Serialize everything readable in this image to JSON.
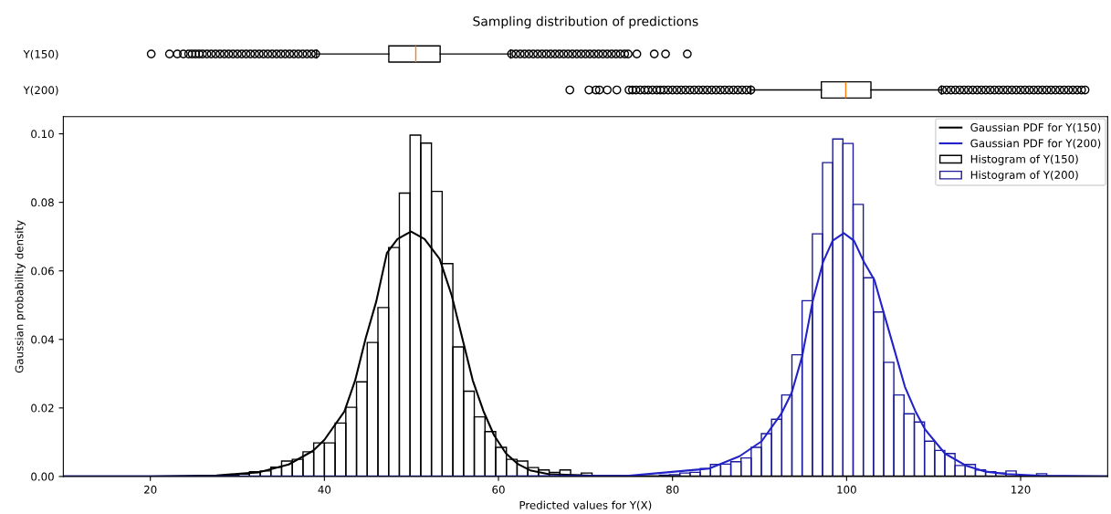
{
  "chart_data": [
    {
      "type": "box",
      "title": "Sampling distribution of predictions",
      "orientation": "horizontal",
      "categories": [
        "Y(150)",
        "Y(200)"
      ],
      "xlim": [
        10,
        130
      ],
      "tick_labels": "y",
      "boxes": [
        {
          "low": 39.1,
          "q1": 47.4,
          "median": 50.5,
          "q3": 53.3,
          "high": 61.4,
          "outliers": [
            20.1,
            22.2,
            23.1,
            23.8,
            24.4,
            24.8,
            25.2,
            25.6,
            26.0,
            26.5,
            27.0,
            27.5,
            28.0,
            28.5,
            29.0,
            29.5,
            30.0,
            30.5,
            31.0,
            31.5,
            32.0,
            32.5,
            33.0,
            33.5,
            34.0,
            34.5,
            35.0,
            35.5,
            36.0,
            36.5,
            37.0,
            37.5,
            38.0,
            38.5,
            39.0,
            61.5,
            62.0,
            62.5,
            63.0,
            63.5,
            64.0,
            64.5,
            65.0,
            65.5,
            66.0,
            66.5,
            67.0,
            67.5,
            68.0,
            68.5,
            69.0,
            69.5,
            70.0,
            70.5,
            71.0,
            71.5,
            72.0,
            72.5,
            73.0,
            73.5,
            74.0,
            74.5,
            74.9,
            75.9,
            77.9,
            79.2,
            81.7
          ]
        },
        {
          "low": 89.0,
          "q1": 97.1,
          "median": 99.9,
          "q3": 102.8,
          "high": 110.9,
          "outliers": [
            68.2,
            70.4,
            71.2,
            71.6,
            72.5,
            73.6,
            75.0,
            75.4,
            75.8,
            76.3,
            76.8,
            77.2,
            77.7,
            78.2,
            78.6,
            79.0,
            79.5,
            80.0,
            80.5,
            81.0,
            81.5,
            82.0,
            82.5,
            83.0,
            83.5,
            84.0,
            84.5,
            85.0,
            85.5,
            86.0,
            86.5,
            87.0,
            87.5,
            88.0,
            88.5,
            89.0,
            111.0,
            111.5,
            112.0,
            112.5,
            113.0,
            113.5,
            114.0,
            114.5,
            115.0,
            115.5,
            116.0,
            116.5,
            117.0,
            117.5,
            118.0,
            118.5,
            119.0,
            119.5,
            120.0,
            120.5,
            121.0,
            121.5,
            122.0,
            122.5,
            123.0,
            123.5,
            124.0,
            124.5,
            125.0,
            125.5,
            126.0,
            126.5,
            127.0,
            127.4
          ]
        }
      ]
    },
    {
      "type": "histogram",
      "xlabel": "Predicted values for Y(X)",
      "ylabel": "Gaussian probability density",
      "xlim": [
        10,
        130
      ],
      "xticks": [
        20,
        40,
        60,
        80,
        100,
        120
      ],
      "ylim": [
        0,
        0.105
      ],
      "yticks": [
        {
          "value": 0,
          "label": "0.00"
        },
        {
          "value": 0.02,
          "label": "0.02"
        },
        {
          "value": 0.04,
          "label": "0.04"
        },
        {
          "value": 0.06,
          "label": "0.06"
        },
        {
          "value": 0.08,
          "label": "0.08"
        },
        {
          "value": 0.1,
          "label": "0.10"
        }
      ],
      "legend": "top right",
      "grid": false,
      "series": [
        {
          "name": "Gaussian PDF for Y(150)",
          "type": "line",
          "color": "#000000",
          "x": [
            10,
            20,
            27.6,
            32.4,
            35.9,
            38.7,
            40.0,
            42.3,
            43.54,
            44.75,
            45.96,
            47.18,
            48.39,
            49.95,
            51.51,
            53.24,
            54.63,
            55.84,
            57.05,
            58.27,
            59.48,
            60.87,
            62.25,
            63.64,
            65.72,
            70.57,
            80,
            130
          ],
          "values": [
            0,
            0,
            0.0003,
            0.0012,
            0.0035,
            0.0075,
            0.0107,
            0.019,
            0.0281,
            0.0404,
            0.0511,
            0.0652,
            0.0693,
            0.0715,
            0.0693,
            0.0635,
            0.0528,
            0.0404,
            0.028,
            0.0191,
            0.0121,
            0.0067,
            0.0036,
            0.0018,
            0.0007,
            0.0002,
            0,
            0
          ]
        },
        {
          "name": "Gaussian PDF for Y(200)",
          "type": "line",
          "color": "#2222c8",
          "x": [
            10,
            60,
            75,
            84.2,
            87.7,
            90.25,
            92.5,
            93.7,
            94.9,
            96.1,
            97.3,
            98.4,
            99.68,
            100.85,
            102.0,
            103.2,
            104.3,
            105.5,
            106.7,
            107.9,
            109.0,
            111.3,
            113.7,
            116.0,
            118.4,
            122.2,
            130
          ],
          "values": [
            0,
            0,
            0.0002,
            0.0023,
            0.0059,
            0.0103,
            0.0183,
            0.0245,
            0.0351,
            0.0511,
            0.0626,
            0.0688,
            0.071,
            0.0688,
            0.0626,
            0.0573,
            0.0475,
            0.0369,
            0.0262,
            0.0191,
            0.0138,
            0.0067,
            0.0032,
            0.0014,
            0.0007,
            0.0002,
            0
          ]
        },
        {
          "name": "Histogram of Y(150)",
          "type": "histogram",
          "color": "#000000",
          "bins": [
            27.7,
            28.93,
            30.16,
            31.39,
            32.62,
            33.85,
            35.08,
            36.31,
            37.54,
            38.77,
            40.0,
            41.23,
            42.46,
            43.69,
            44.92,
            46.15,
            47.38,
            48.61,
            49.84,
            51.07,
            52.3,
            53.53,
            54.76,
            55.99,
            57.22,
            58.45,
            59.68,
            60.91,
            62.14,
            63.37,
            64.6,
            65.83,
            67.06,
            68.29,
            69.52,
            70.75
          ],
          "values": [
            0.0002,
            0.0003,
            0.0007,
            0.0014,
            0.0016,
            0.0027,
            0.0045,
            0.005,
            0.0072,
            0.0098,
            0.0098,
            0.0156,
            0.0202,
            0.0276,
            0.0391,
            0.0493,
            0.0668,
            0.0827,
            0.0996,
            0.0973,
            0.0832,
            0.0621,
            0.0378,
            0.0249,
            0.0174,
            0.0131,
            0.0085,
            0.005,
            0.0045,
            0.0026,
            0.0019,
            0.0012,
            0.0019,
            0.0004,
            0.001
          ]
        },
        {
          "name": "Histogram of Y(200)",
          "type": "histogram",
          "color": "#1a1a9a",
          "bins": [
            78.5,
            79.67,
            80.84,
            82.01,
            83.18,
            84.36,
            85.53,
            86.7,
            87.87,
            89.04,
            90.21,
            91.38,
            92.55,
            93.72,
            94.89,
            96.07,
            97.24,
            98.41,
            99.58,
            100.75,
            101.92,
            103.09,
            104.26,
            105.43,
            106.6,
            107.78,
            108.95,
            110.12,
            111.29,
            112.46,
            113.63,
            114.8,
            115.97,
            117.14,
            118.31,
            119.49,
            120.66,
            121.83,
            123.0
          ],
          "values": [
            0.0004,
            0.0005,
            0.001,
            0.0012,
            0.0023,
            0.0035,
            0.0036,
            0.0043,
            0.0054,
            0.0085,
            0.0125,
            0.0167,
            0.0238,
            0.0355,
            0.0513,
            0.0708,
            0.0916,
            0.0985,
            0.0972,
            0.0794,
            0.058,
            0.048,
            0.0333,
            0.0238,
            0.0183,
            0.0159,
            0.0103,
            0.0076,
            0.0067,
            0.0032,
            0.0035,
            0.0019,
            0.0014,
            0.001,
            0.0016,
            null,
            0,
            0.0008
          ]
        }
      ]
    }
  ]
}
